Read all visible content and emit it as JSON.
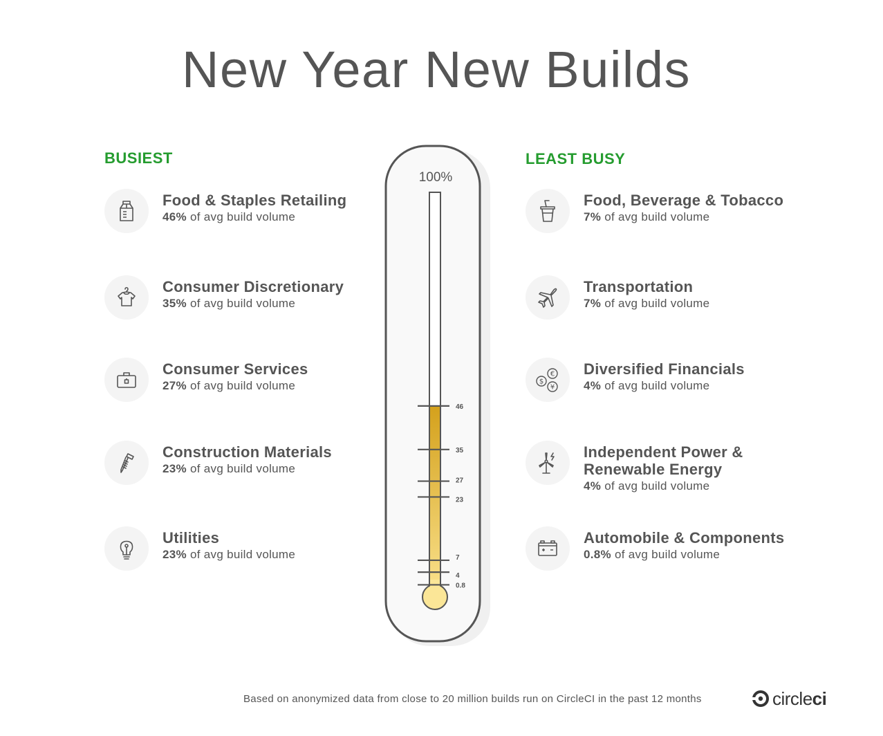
{
  "title": "New Year New Builds",
  "busiest": {
    "heading": "BUSIEST",
    "items": [
      {
        "title": "Food & Staples Retailing",
        "pct": "46%",
        "suffix": " of avg build volume",
        "icon": "milk-carton-icon"
      },
      {
        "title": "Consumer Discretionary",
        "pct": "35%",
        "suffix": " of avg build volume",
        "icon": "shirt-on-hanger-icon"
      },
      {
        "title": "Consumer Services",
        "pct": "27%",
        "suffix": " of avg build volume",
        "icon": "briefcase-icon"
      },
      {
        "title": "Construction Materials",
        "pct": "23%",
        "suffix": " of avg build volume",
        "icon": "screw-icon"
      },
      {
        "title": "Utilities",
        "pct": "23%",
        "suffix": " of avg build volume",
        "icon": "lightbulb-icon"
      }
    ]
  },
  "least_busy": {
    "heading": "LEAST BUSY",
    "items": [
      {
        "title": "Food, Beverage & Tobacco",
        "pct": "7%",
        "suffix": " of avg build volume",
        "icon": "drink-cup-icon"
      },
      {
        "title": "Transportation",
        "pct": "7%",
        "suffix": " of avg build volume",
        "icon": "airplane-icon"
      },
      {
        "title": "Diversified Financials",
        "pct": "4%",
        "suffix": " of avg build volume",
        "icon": "currency-coins-icon"
      },
      {
        "title": "Independent Power &",
        "title2": "Renewable Energy",
        "pct": "4%",
        "suffix": " of avg build volume",
        "icon": "wind-turbine-icon"
      },
      {
        "title": "Automobile & Components",
        "pct": "0.8%",
        "suffix": " of avg build volume",
        "icon": "car-battery-icon"
      }
    ]
  },
  "thermometer": {
    "top_label": "100%",
    "fill_level": 46,
    "ticks": [
      "46",
      "35",
      "27",
      "23",
      "7",
      "4",
      "0.8"
    ],
    "tick_values": [
      46,
      35,
      27,
      23,
      7,
      4,
      0.8
    ],
    "colors": {
      "fill_top": "#d4a11c",
      "fill_bottom": "#fbe38f",
      "bulb": "#fbe697",
      "outline": "#555555"
    }
  },
  "footer": {
    "note": "Based on anonymized data from close to 20 million builds run on CircleCI in the past 12 months",
    "brand_light": "circle",
    "brand_bold": "ci"
  },
  "colors": {
    "heading": "#259c2f",
    "text": "#555555"
  }
}
